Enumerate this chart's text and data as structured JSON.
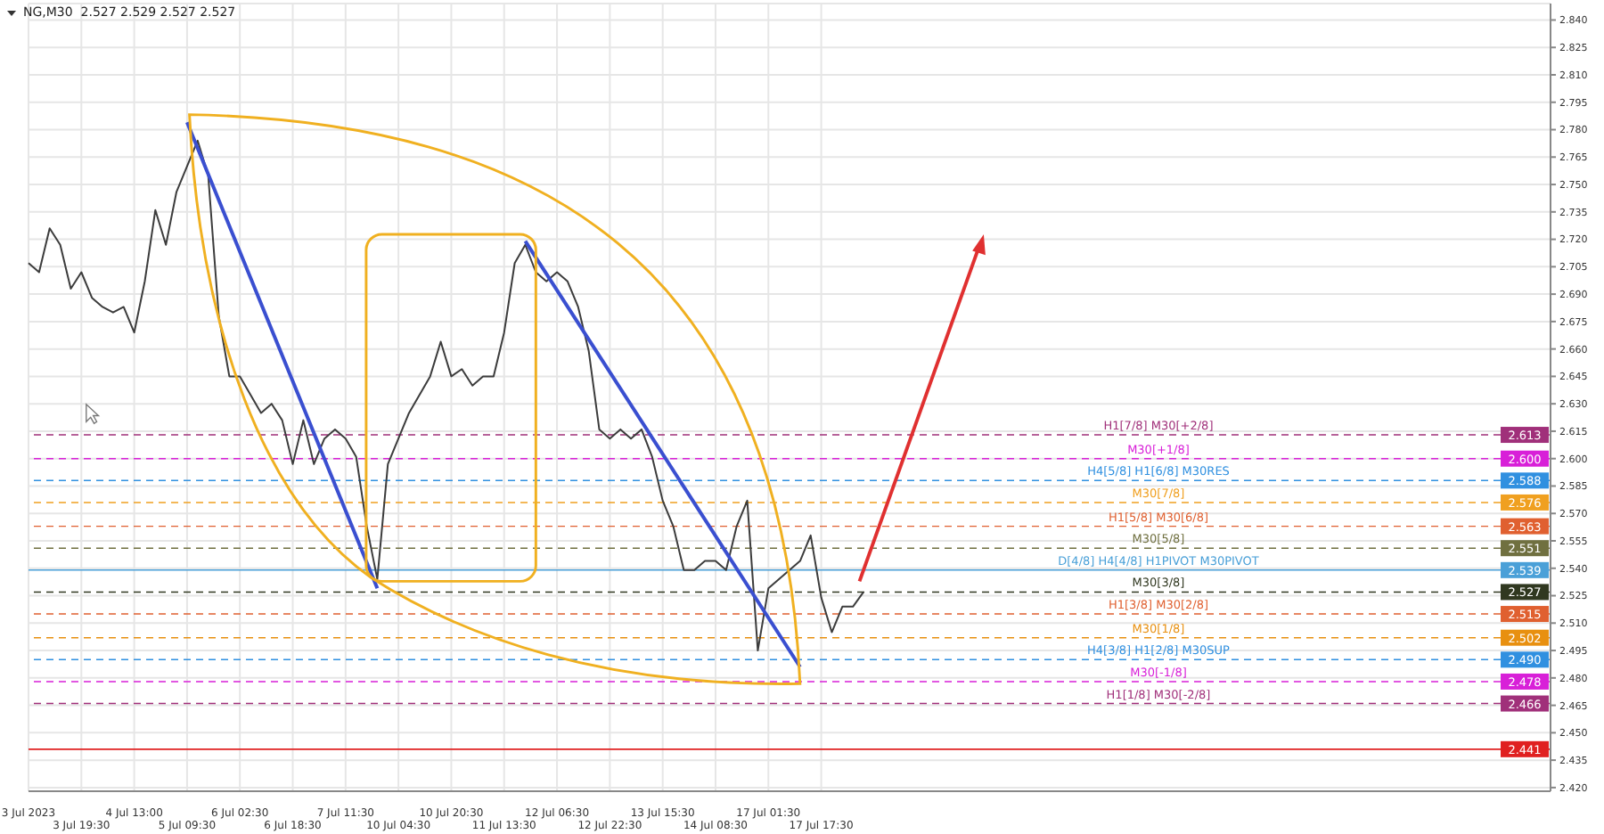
{
  "chart_data": {
    "type": "line",
    "title": "NG,M30  2.527 2.529 2.527 2.527",
    "categories": [
      "3 Jul 2023",
      null,
      null,
      null,
      null,
      "3 Jul 19:30",
      null,
      null,
      null,
      null,
      "4 Jul 13:00",
      null,
      null,
      null,
      null,
      "5 Jul 09:30",
      null,
      null,
      null,
      null,
      "6 Jul 02:30",
      null,
      null,
      null,
      null,
      "6 Jul 18:30",
      null,
      null,
      null,
      null,
      "7 Jul 11:30",
      null,
      null,
      null,
      null,
      "10 Jul 04:30",
      null,
      null,
      null,
      null,
      "10 Jul 20:30",
      null,
      null,
      null,
      null,
      "11 Jul 13:30",
      null,
      null,
      null,
      null,
      "12 Jul 06:30",
      null,
      null,
      null,
      null,
      "12 Jul 22:30",
      null,
      null,
      null,
      null,
      "13 Jul 15:30",
      null,
      null,
      null,
      null,
      "14 Jul 08:30",
      null,
      null,
      null,
      null,
      "17 Jul 01:30",
      null,
      null,
      null,
      null,
      "17 Jul 17:30",
      null,
      null,
      null,
      null,
      null,
      null,
      null,
      null,
      null,
      null,
      null,
      null,
      null,
      null,
      null,
      null,
      null,
      null,
      null,
      null,
      null,
      null,
      null,
      null,
      null,
      null,
      null,
      null,
      null,
      null,
      null,
      null,
      null,
      null,
      null,
      null,
      null,
      null,
      null,
      null,
      null,
      null,
      null,
      null,
      null,
      null,
      null,
      null,
      null,
      null,
      null,
      null,
      null,
      null,
      null,
      null,
      null,
      null,
      null,
      null,
      null,
      null,
      null,
      null,
      null,
      null,
      null,
      null,
      null
    ],
    "series": [
      {
        "color": "#3c3c3c",
        "values": [
          2.707,
          2.702,
          2.726,
          2.717,
          2.693,
          2.702,
          2.688,
          2.683,
          2.68,
          2.683,
          2.669,
          2.697,
          2.736,
          2.717,
          2.746,
          2.76,
          2.774,
          2.755,
          2.678,
          2.645,
          2.645,
          2.635,
          2.625,
          2.63,
          2.621,
          2.597,
          2.621,
          2.597,
          2.611,
          2.616,
          2.611,
          2.601,
          2.563,
          2.534,
          2.597,
          2.611,
          2.625,
          2.635,
          2.645,
          2.664,
          2.645,
          2.649,
          2.64,
          2.645,
          2.645,
          2.669,
          2.707,
          2.717,
          2.702,
          2.697,
          2.702,
          2.697,
          2.683,
          2.659,
          2.616,
          2.611,
          2.616,
          2.611,
          2.616,
          2.601,
          2.577,
          2.563,
          2.539,
          2.539,
          2.544,
          2.544,
          2.539,
          2.563,
          2.577,
          2.495,
          2.529,
          2.534,
          2.539,
          2.544,
          2.558,
          2.524,
          2.505,
          2.519,
          2.519,
          2.527,
          null,
          null,
          null,
          null,
          null,
          null,
          null,
          null,
          null,
          null,
          null,
          null,
          null,
          null,
          null,
          null,
          null,
          null,
          null,
          null,
          null,
          null,
          null,
          null,
          null,
          null,
          null,
          null,
          null,
          null,
          null,
          null,
          null,
          null,
          null,
          null,
          null,
          null,
          null,
          null,
          null,
          null,
          null,
          null,
          null,
          null,
          null,
          null,
          null,
          null,
          null,
          null,
          null,
          null,
          null,
          null,
          null,
          null,
          null,
          null,
          null,
          null,
          null,
          null,
          null
        ]
      },
      {
        "color": "#3a4fd0",
        "values": [
          null,
          null,
          null,
          null,
          null,
          null,
          null,
          null,
          null,
          null,
          null,
          null,
          null,
          null,
          null,
          2.784,
          null,
          null,
          null,
          null,
          null,
          null,
          null,
          null,
          null,
          null,
          null,
          null,
          null,
          null,
          null,
          null,
          null,
          2.529,
          null,
          null,
          null,
          null,
          null,
          null,
          null,
          null,
          null,
          null,
          null,
          null,
          null,
          null,
          null,
          null,
          null,
          null,
          null,
          null,
          null,
          null,
          null,
          null,
          null,
          null,
          null,
          null,
          null,
          null,
          null,
          null,
          null,
          null,
          null,
          null,
          null,
          null,
          null,
          null,
          null,
          null,
          null,
          null,
          null,
          null,
          null,
          null,
          null,
          null,
          null,
          null,
          null,
          null,
          null,
          null,
          null,
          null,
          null,
          null,
          null,
          null,
          null,
          null,
          null,
          null,
          null,
          null,
          null,
          null,
          null,
          null,
          null,
          null,
          null,
          null,
          null,
          null,
          null,
          null,
          null,
          null,
          null,
          null,
          null,
          null,
          null,
          null,
          null,
          null,
          null,
          null,
          null,
          null,
          null,
          null,
          null,
          null,
          null,
          null,
          null,
          null,
          null,
          null,
          null,
          null,
          null,
          null,
          null,
          null,
          null
        ]
      },
      {
        "color": "#3a4fd0",
        "values": [
          null,
          null,
          null,
          null,
          null,
          null,
          null,
          null,
          null,
          null,
          null,
          null,
          null,
          null,
          null,
          null,
          null,
          null,
          null,
          null,
          null,
          null,
          null,
          null,
          null,
          null,
          null,
          null,
          null,
          null,
          null,
          null,
          null,
          null,
          null,
          null,
          null,
          null,
          null,
          null,
          null,
          null,
          null,
          null,
          null,
          null,
          null,
          2.719,
          null,
          null,
          null,
          null,
          null,
          null,
          null,
          null,
          null,
          null,
          null,
          null,
          null,
          null,
          null,
          null,
          null,
          null,
          null,
          null,
          null,
          null,
          null,
          null,
          null,
          2.486,
          null,
          null,
          null,
          null,
          null,
          null,
          null,
          null,
          null,
          null,
          null,
          null,
          null,
          null,
          null,
          null,
          null,
          null,
          null,
          null,
          null,
          null,
          null,
          null,
          null,
          null,
          null,
          null,
          null,
          null,
          null,
          null,
          null,
          null,
          null,
          null,
          null,
          null,
          null,
          null,
          null,
          null,
          null,
          null,
          null,
          null,
          null,
          null,
          null,
          null,
          null,
          null,
          null,
          null,
          null,
          null,
          null,
          null,
          null,
          null,
          null,
          null,
          null,
          null,
          null,
          null,
          null,
          null,
          null,
          null,
          null
        ]
      }
    ],
    "ylim": [
      2.418,
      2.849
    ],
    "yticks": [
      {
        "value": 2.84,
        "label": "2.840"
      },
      2.825,
      {
        "value": 2.81,
        "label": "2.810"
      },
      2.795,
      {
        "value": 2.78,
        "label": "2.780"
      },
      2.765,
      {
        "value": 2.75,
        "label": "2.750"
      },
      2.735,
      {
        "value": 2.72,
        "label": "2.720"
      },
      2.705,
      {
        "value": 2.69,
        "label": "2.690"
      },
      2.675,
      {
        "value": 2.66,
        "label": "2.660"
      },
      2.645,
      {
        "value": 2.63,
        "label": "2.630"
      },
      2.615,
      {
        "value": 2.6,
        "label": "2.600"
      },
      2.585,
      {
        "value": 2.57,
        "label": "2.570"
      },
      2.555,
      {
        "value": 2.54,
        "label": "2.540"
      },
      2.525,
      {
        "value": 2.51,
        "label": "2.510"
      },
      2.495,
      {
        "value": 2.48,
        "label": "2.480"
      },
      2.465,
      {
        "value": 2.45,
        "label": "2.450"
      },
      2.435,
      {
        "value": 2.42,
        "label": "2.420"
      }
    ],
    "grid": true,
    "annotations": [
      {
        "text": "2.613",
        "y": 2.613
      },
      {
        "text": "2.600",
        "y": 2.6
      },
      {
        "text": "2.588",
        "y": 2.588
      },
      {
        "text": "2.576",
        "y": 2.576
      },
      {
        "text": "2.563",
        "y": 2.563
      },
      {
        "text": "2.551",
        "y": 2.551
      },
      {
        "text": "2.539",
        "y": 2.539
      },
      {
        "text": "2.527",
        "y": 2.527
      },
      {
        "text": "2.515",
        "y": 2.515
      },
      {
        "text": "2.502",
        "y": 2.502
      },
      {
        "text": "2.490",
        "y": 2.49
      },
      {
        "text": "2.478",
        "y": 2.478
      },
      {
        "text": "2.466",
        "y": 2.466
      },
      {
        "text": "2.441",
        "y": 2.441
      }
    ],
    "ref_lines": [
      {
        "axis": "y",
        "value": 2.613,
        "label": "H1[7/8] M30[+2/8]",
        "color": "#a0307a",
        "line_style": "dashed"
      },
      {
        "axis": "y",
        "value": 2.6,
        "label": "M30[+1/8]",
        "color": "#d820d8",
        "line_style": "dashed"
      },
      {
        "axis": "y",
        "value": 2.588,
        "label": "H4[5/8] H1[6/8] M30RES",
        "color": "#3090e0",
        "line_style": "dashed"
      },
      {
        "axis": "y",
        "value": 2.576,
        "label": "M30[7/8]",
        "color": "#f0a020",
        "line_style": "dashed"
      },
      {
        "axis": "y",
        "value": 2.563,
        "label": "H1[5/8] M30[6/8]",
        "color": "#e06030",
        "line_style": "dashed"
      },
      {
        "axis": "y",
        "value": 2.551,
        "label": "M30[5/8]",
        "color": "#707040",
        "line_style": "dashed"
      },
      {
        "axis": "y",
        "value": 2.539,
        "label": "D[4/8] H4[4/8] H1PIVOT M30PIVOT",
        "color": "#4aa0d8",
        "line_style": "solid"
      },
      {
        "axis": "y",
        "value": 2.527,
        "label": "M30[3/8]",
        "color": "#303820",
        "line_style": "dashed"
      },
      {
        "axis": "y",
        "value": 2.515,
        "label": "H1[3/8] M30[2/8]",
        "color": "#e06030",
        "line_style": "dashed"
      },
      {
        "axis": "y",
        "value": 2.502,
        "label": "M30[1/8]",
        "color": "#e89010",
        "line_style": "dashed"
      },
      {
        "axis": "y",
        "value": 2.49,
        "label": "H4[3/8] H1[2/8] M30SUP",
        "color": "#3090e0",
        "line_style": "dashed"
      },
      {
        "axis": "y",
        "value": 2.478,
        "label": "M30[-1/8]",
        "color": "#d820d8",
        "line_style": "dashed"
      },
      {
        "axis": "y",
        "value": 2.466,
        "label": "H1[1/8] M30[-2/8]",
        "color": "#a0307a",
        "line_style": "dashed"
      },
      {
        "axis": "y",
        "value": 2.441,
        "label": null,
        "color": "#e02020",
        "line_style": "solid"
      }
    ]
  }
}
